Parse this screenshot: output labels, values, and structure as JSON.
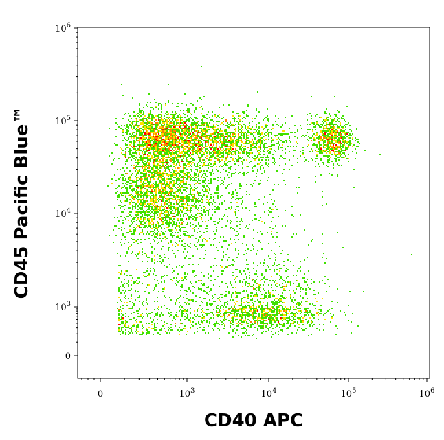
{
  "chart_data": {
    "type": "scatter",
    "subtype": "flow-cytometry-density-dot-plot",
    "xlabel": "CD40 APC",
    "ylabel": "CD45 Pacific Blue™",
    "x_scale": "biexponential",
    "y_scale": "biexponential",
    "x_ticks": [
      {
        "value": 0,
        "base": "0",
        "exp": ""
      },
      {
        "value": 1000,
        "base": "10",
        "exp": "3"
      },
      {
        "value": 10000,
        "base": "10",
        "exp": "4"
      },
      {
        "value": 100000,
        "base": "10",
        "exp": "5"
      },
      {
        "value": 1000000,
        "base": "10",
        "exp": "6"
      }
    ],
    "y_ticks": [
      {
        "value": 0,
        "base": "0",
        "exp": ""
      },
      {
        "value": 1000,
        "base": "10",
        "exp": "3"
      },
      {
        "value": 10000,
        "base": "10",
        "exp": "4"
      },
      {
        "value": 100000,
        "base": "10",
        "exp": "5"
      },
      {
        "value": 1000000,
        "base": "10",
        "exp": "6"
      }
    ],
    "xlim": [
      -200,
      1000000
    ],
    "ylim": [
      -200,
      1000000
    ],
    "color_scale": [
      "#0000cc",
      "#00a0ff",
      "#00e0c0",
      "#40e000",
      "#ffe000",
      "#ff8000",
      "#ff0000"
    ],
    "populations": [
      {
        "center_x": 420,
        "center_y": 18000,
        "spread_x": 0.22,
        "spread_y": 0.2,
        "density": 1.0
      },
      {
        "center_x": 2200,
        "center_y": 60000,
        "spread_x": 0.3,
        "spread_y": 0.09,
        "density": 0.75
      },
      {
        "center_x": 420,
        "center_y": 75000,
        "spread_x": 0.18,
        "spread_y": 0.08,
        "density": 0.45
      },
      {
        "center_x": 8000,
        "center_y": 850,
        "spread_x": 0.25,
        "spread_y": 0.17,
        "density": 0.55
      },
      {
        "center_x": 60000,
        "center_y": 65000,
        "spread_x": 0.08,
        "spread_y": 0.08,
        "density": 0.3
      },
      {
        "center_x": 2500,
        "center_y": 10000,
        "spread_x": 0.35,
        "spread_y": 0.3,
        "density": 0.25
      }
    ]
  }
}
